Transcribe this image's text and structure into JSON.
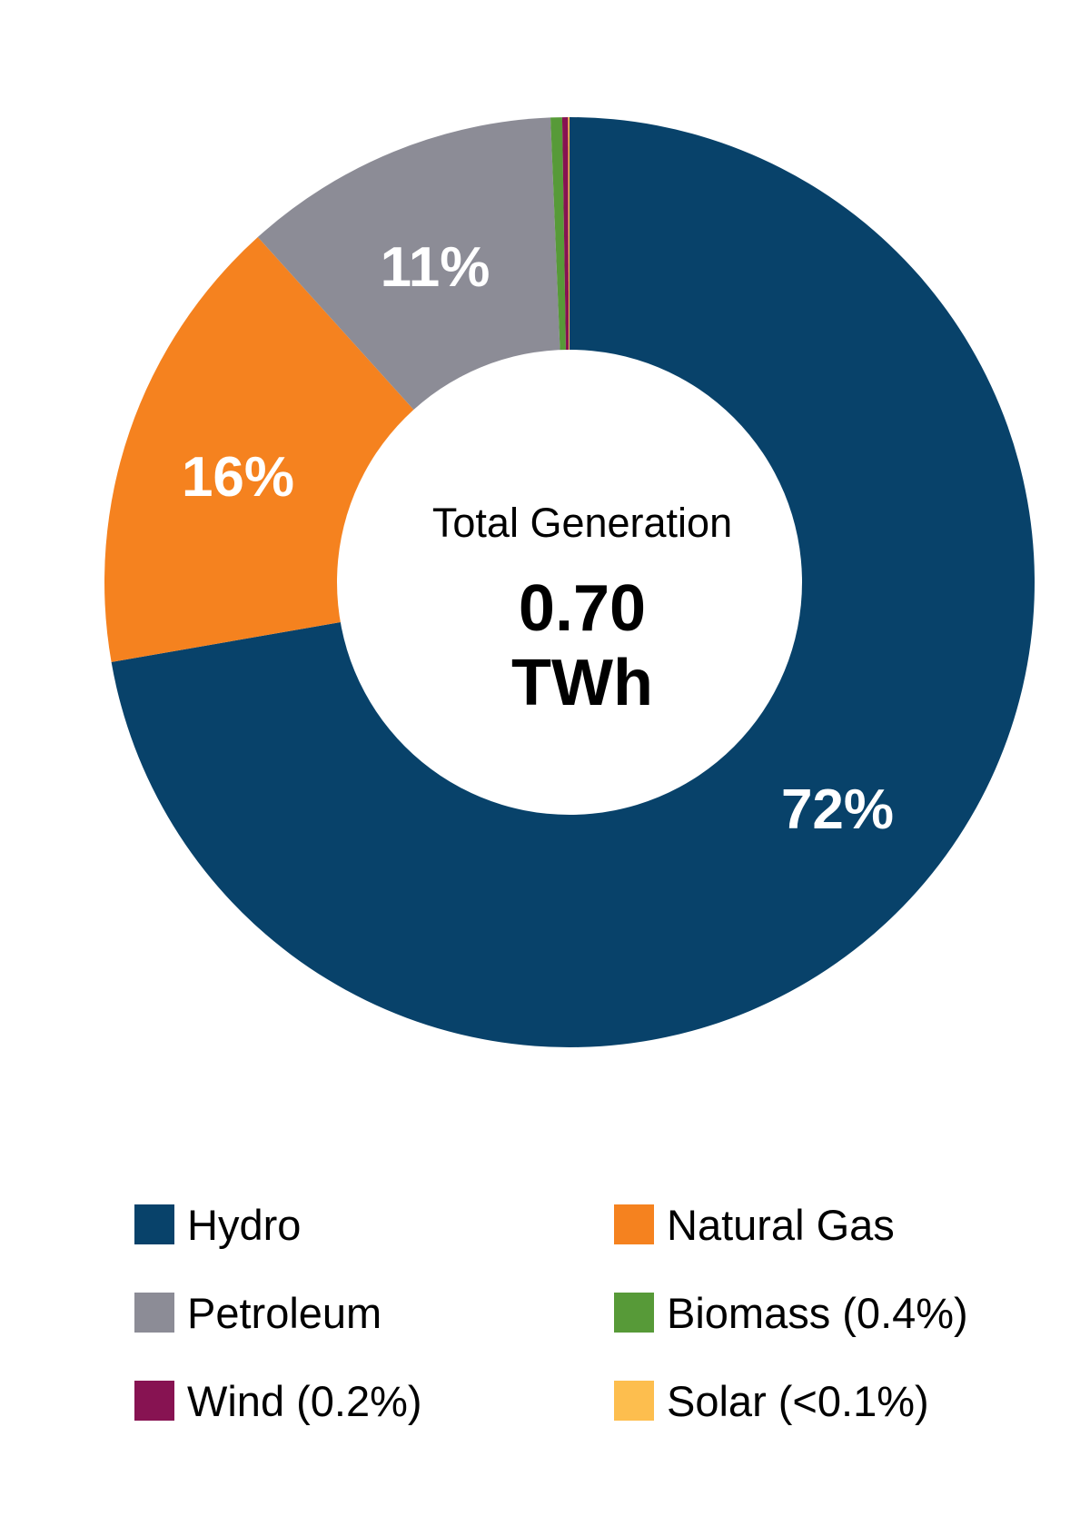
{
  "chart_data": {
    "type": "pie",
    "variant": "donut",
    "title": "",
    "center_text": {
      "label": "Total Generation",
      "value": "0.70",
      "unit": "TWh"
    },
    "total": 0.7,
    "total_unit": "TWh",
    "categories": [
      "Hydro",
      "Natural Gas",
      "Petroleum",
      "Biomass",
      "Wind",
      "Solar"
    ],
    "values": [
      72,
      16,
      11,
      0.4,
      0.2,
      0.05
    ],
    "value_unit": "%",
    "colors": [
      "#08426A",
      "#F5821F",
      "#8C8C96",
      "#579A38",
      "#871352",
      "#FDBE4E"
    ],
    "slice_labels": [
      "72%",
      "16%",
      "11%",
      "",
      "",
      ""
    ],
    "legend_position": "bottom",
    "start_angle": "12 o'clock",
    "direction": "counterclockwise from Hydro end"
  },
  "center": {
    "label": "Total Generation",
    "value": "0.70",
    "unit": "TWh"
  },
  "slice_labels": {
    "hydro": "72%",
    "natural_gas": "16%",
    "petroleum": "11%"
  },
  "legend": {
    "items": [
      {
        "label": "Hydro",
        "color": "#08426A"
      },
      {
        "label": "Natural Gas",
        "color": "#F5821F"
      },
      {
        "label": "Petroleum",
        "color": "#8C8C96"
      },
      {
        "label": "Biomass (0.4%)",
        "color": "#579A38"
      },
      {
        "label": "Wind (0.2%)",
        "color": "#871352"
      },
      {
        "label": "Solar (<0.1%)",
        "color": "#FDBE4E"
      }
    ]
  }
}
